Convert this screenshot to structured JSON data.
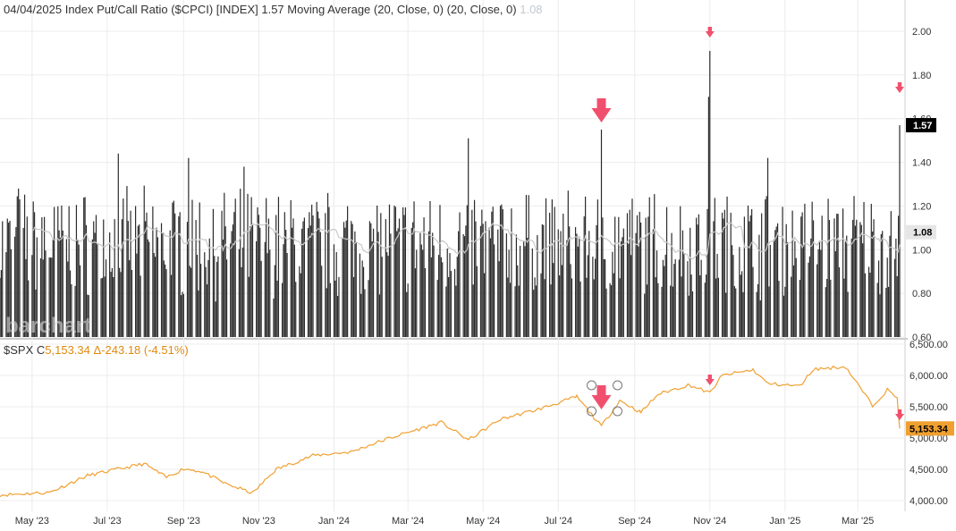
{
  "header": {
    "date": "04/04/2025",
    "symbol_title": "Index Put/Call Ratio ($CPCI) [INDEX]",
    "last_value": "1.57",
    "ma_label": "Moving Average (20, Close, 0)",
    "ma_params": "(20, Close, 0)",
    "ma_value": "1.08"
  },
  "lower_header": {
    "symbol": "$SPX",
    "close_prefix": "C",
    "close": "5,153.34",
    "change": "Δ-243.18 (-4.51%)"
  },
  "watermark": "barchart",
  "colors": {
    "bars": "#2b2b2b",
    "ma": "#c8c8c8",
    "spx": "#f0a030",
    "arrow": "#f0506e",
    "tag_black": "#000000",
    "tag_gray": "#e6e6e6",
    "tag_orange": "#f0a030"
  },
  "chart_data": [
    {
      "type": "bar",
      "title": "Index Put/Call Ratio ($CPCI)",
      "ylim": [
        0.6,
        2.1
      ],
      "yticks": [
        "2.00",
        "1.80",
        "1.60",
        "1.40",
        "1.20",
        "1.00",
        "0.80",
        "0.60"
      ],
      "last_value_tag": "1.57",
      "ma_value_tag": "1.08",
      "x_start": "2023-04-05",
      "x_end": "2025-04-04",
      "baseline_mean": 1.03,
      "spikes": [
        {
          "date": "2023-04-20",
          "value": 1.28
        },
        {
          "date": "2023-07-10",
          "value": 1.44
        },
        {
          "date": "2023-09-05",
          "value": 1.42
        },
        {
          "date": "2023-10-20",
          "value": 1.38
        },
        {
          "date": "2024-04-19",
          "value": 1.51
        },
        {
          "date": "2024-08-05",
          "value": 1.55
        },
        {
          "date": "2024-11-01",
          "value": 1.91
        },
        {
          "date": "2024-10-31",
          "value": 1.7
        },
        {
          "date": "2024-12-18",
          "value": 1.42
        },
        {
          "date": "2025-04-04",
          "value": 1.57
        }
      ],
      "moving_average": {
        "period": 20,
        "last": 1.08
      },
      "annotations": [
        "arrow 2024-08-05",
        "arrow 2024-11-01",
        "arrow 2025-04-04"
      ]
    },
    {
      "type": "line",
      "title": "$SPX",
      "ylim": [
        3900,
        6500
      ],
      "yticks": [
        "6,500.00",
        "6,000.00",
        "5,500.00",
        "5,000.00",
        "4,500.00",
        "4,000.00"
      ],
      "last_value_tag": "5,153.34",
      "x": [
        "2023-04-05",
        "2023-05-15",
        "2023-06-15",
        "2023-07-31",
        "2023-08-18",
        "2023-09-01",
        "2023-09-15",
        "2023-10-05",
        "2023-10-27",
        "2023-11-15",
        "2023-12-15",
        "2024-01-15",
        "2024-02-15",
        "2024-03-28",
        "2024-04-19",
        "2024-05-15",
        "2024-06-15",
        "2024-07-16",
        "2024-08-05",
        "2024-08-20",
        "2024-09-06",
        "2024-09-20",
        "2024-10-15",
        "2024-11-01",
        "2024-11-11",
        "2024-12-06",
        "2024-12-18",
        "2025-01-13",
        "2025-01-24",
        "2025-02-19",
        "2025-03-13",
        "2025-03-25",
        "2025-04-02",
        "2025-04-04"
      ],
      "y": [
        4090,
        4130,
        4400,
        4590,
        4370,
        4510,
        4470,
        4270,
        4120,
        4500,
        4720,
        4780,
        5000,
        5250,
        4970,
        5300,
        5460,
        5660,
        5190,
        5600,
        5410,
        5700,
        5850,
        5720,
        6000,
        6090,
        5870,
        5830,
        6100,
        6140,
        5520,
        5770,
        5640,
        5153
      ],
      "annotations": [
        "arrow 2024-08-05",
        "arrow 2024-11-01",
        "arrow 2025-04-04"
      ]
    }
  ],
  "x_axis": {
    "labels": [
      "May '23",
      "Jul '23",
      "Sep '23",
      "Nov '23",
      "Jan '24",
      "Mar '24",
      "May '24",
      "Jul '24",
      "Sep '24",
      "Nov '24",
      "Jan '25",
      "Mar '25"
    ]
  }
}
